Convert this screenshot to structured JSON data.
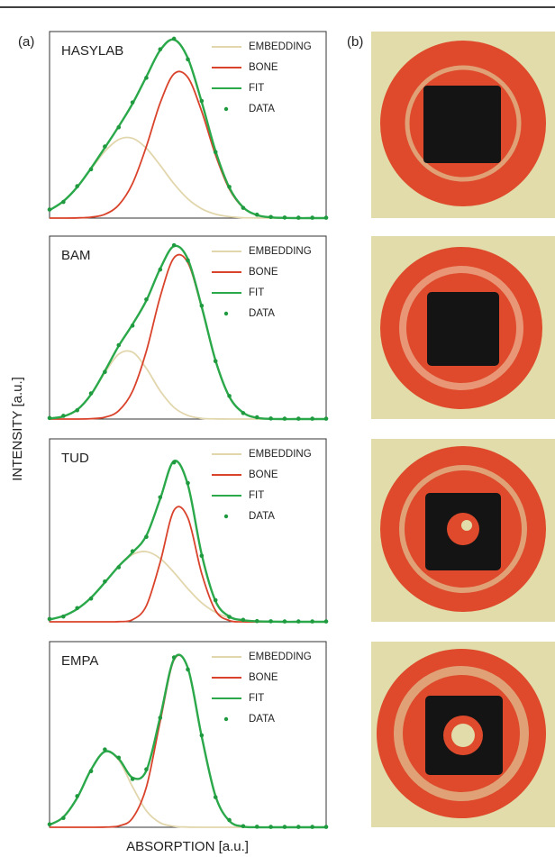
{
  "figure": {
    "panel_labels": [
      "(a)",
      "(b)"
    ],
    "y_label": "INTENSITY [a.u.]",
    "x_label": "ABSORPTION [a.u.]"
  },
  "chart_data": [
    {
      "type": "line",
      "title": "HASYLAB",
      "xlim": [
        0,
        100
      ],
      "ylim": [
        0,
        104
      ],
      "x": [
        0,
        5,
        10,
        15,
        20,
        25,
        30,
        35,
        40,
        45,
        50,
        55,
        60,
        65,
        70,
        75,
        80,
        85,
        90,
        95,
        100
      ],
      "series": [
        {
          "name": "EMBEDDING",
          "color": "#e2d6ad",
          "values": [
            4.4,
            9.4,
            17.2,
            27.3,
            37.2,
            43.8,
            44.5,
            38.9,
            29.4,
            19.1,
            10.7,
            5.2,
            2.2,
            0.8,
            0.2,
            0.1,
            0,
            0,
            0,
            0,
            0
          ]
        },
        {
          "name": "BONE",
          "color": "#d9432b",
          "values": [
            0,
            0,
            0.1,
            0.5,
            2.1,
            7.3,
            19.3,
            39.9,
            64.2,
            80.4,
            78.4,
            59.5,
            35.2,
            16.2,
            5.8,
            1.6,
            0.4,
            0.1,
            0,
            0,
            0
          ]
        },
        {
          "name": "FIT",
          "color": "#2aa84a",
          "values": [
            4.4,
            9.4,
            17.3,
            27.8,
            39.3,
            51.1,
            63.8,
            78.8,
            93.6,
            99.5,
            89.1,
            64.7,
            37.4,
            17.0,
            6.0,
            1.7,
            0.4,
            0.1,
            0,
            0,
            0
          ]
        },
        {
          "name": "DATA",
          "type": "scatter",
          "color": "#1f9a3f",
          "values": [
            4.8,
            9.0,
            17.8,
            27.2,
            39.9,
            50.6,
            64.5,
            78.2,
            94.1,
            100.0,
            88.5,
            65.3,
            36.8,
            17.4,
            5.7,
            1.9,
            0.6,
            0.3,
            0.2,
            0.2,
            0.2
          ]
        }
      ]
    },
    {
      "type": "line",
      "title": "BAM",
      "xlim": [
        0,
        100
      ],
      "ylim": [
        0,
        104
      ],
      "x": [
        0,
        5,
        10,
        15,
        20,
        25,
        30,
        35,
        40,
        45,
        50,
        55,
        60,
        65,
        70,
        75,
        80,
        85,
        90,
        95,
        100
      ],
      "series": [
        {
          "name": "EMBEDDING",
          "color": "#e2d6ad",
          "values": [
            0.3,
            1.5,
            5.3,
            13.8,
            26.3,
            36.9,
            38.0,
            28.8,
            16.0,
            6.6,
            2.0,
            0.4,
            0.1,
            0,
            0,
            0,
            0,
            0,
            0,
            0,
            0
          ]
        },
        {
          "name": "BONE",
          "color": "#d9432b",
          "values": [
            0,
            0,
            0,
            0.2,
            1.0,
            4.7,
            15.8,
            38.6,
            69.5,
            91.7,
            88.9,
            63.4,
            33.2,
            12.7,
            3.6,
            0.7,
            0.1,
            0,
            0,
            0,
            0
          ]
        },
        {
          "name": "FIT",
          "color": "#2aa84a",
          "values": [
            0.3,
            1.5,
            5.3,
            14.0,
            27.3,
            41.6,
            53.8,
            67.4,
            85.5,
            98.3,
            90.9,
            63.8,
            33.3,
            12.7,
            3.6,
            0.7,
            0.1,
            0,
            0,
            0,
            0
          ]
        },
        {
          "name": "DATA",
          "type": "scatter",
          "color": "#1f9a3f",
          "values": [
            0.6,
            1.8,
            5.0,
            14.6,
            26.8,
            42.0,
            53.1,
            68.0,
            85.0,
            98.8,
            90.2,
            64.4,
            32.9,
            13.1,
            3.4,
            1.0,
            0.3,
            0.2,
            0.2,
            0.2,
            0.2
          ]
        }
      ]
    },
    {
      "type": "line",
      "title": "TUD",
      "xlim": [
        0,
        100
      ],
      "ylim": [
        0,
        104
      ],
      "x": [
        0,
        5,
        10,
        15,
        20,
        25,
        30,
        35,
        40,
        45,
        50,
        55,
        60,
        65,
        70,
        75,
        80,
        85,
        90,
        95,
        100
      ],
      "series": [
        {
          "name": "EMBEDDING",
          "color": "#e2d6ad",
          "values": [
            1.3,
            3.3,
            7.3,
            13.7,
            22.4,
            31.5,
            38.2,
            39.9,
            36.0,
            28.0,
            18.8,
            10.8,
            5.4,
            2.3,
            0.9,
            0.3,
            0.1,
            0,
            0,
            0,
            0
          ]
        },
        {
          "name": "BONE",
          "color": "#d9432b",
          "values": [
            0,
            0,
            0,
            0,
            0,
            0.1,
            1.2,
            9.1,
            33.9,
            63.4,
            59.1,
            27.5,
            6.4,
            0.7,
            0,
            0,
            0,
            0,
            0,
            0,
            0
          ]
        },
        {
          "name": "FIT",
          "color": "#2aa84a",
          "values": [
            1.3,
            3.3,
            7.3,
            13.7,
            22.4,
            31.6,
            39.4,
            49.0,
            69.9,
            91.4,
            77.9,
            38.3,
            11.8,
            3.0,
            0.9,
            0.3,
            0.1,
            0,
            0,
            0,
            0
          ]
        },
        {
          "name": "DATA",
          "type": "scatter",
          "color": "#1f9a3f",
          "values": [
            1.6,
            3.0,
            7.8,
            13.2,
            22.9,
            31.0,
            40.1,
            48.3,
            70.8,
            90.6,
            78.9,
            37.5,
            12.3,
            2.8,
            1.1,
            0.4,
            0.3,
            0.2,
            0.2,
            0.2,
            0.2
          ]
        }
      ]
    },
    {
      "type": "line",
      "title": "EMPA",
      "xlim": [
        0,
        100
      ],
      "ylim": [
        0,
        100
      ],
      "x": [
        0,
        5,
        10,
        15,
        20,
        25,
        30,
        35,
        40,
        45,
        50,
        55,
        60,
        65,
        70,
        75,
        80,
        85,
        90,
        95,
        100
      ],
      "series": [
        {
          "name": "EMBEDDING",
          "color": "#e2d6ad",
          "values": [
            1.3,
            5.5,
            15.9,
            31.0,
            40.7,
            36.2,
            21.8,
            8.9,
            2.4,
            0.5,
            0.1,
            0,
            0,
            0,
            0,
            0,
            0,
            0,
            0,
            0,
            0
          ]
        },
        {
          "name": "BONE",
          "color": "#d9432b",
          "values": [
            0,
            0,
            0,
            0,
            0.1,
            0.7,
            4.9,
            21.6,
            57.0,
            90.2,
            85.7,
            48.9,
            16.8,
            3.4,
            0.4,
            0,
            0,
            0,
            0,
            0,
            0
          ]
        },
        {
          "name": "FIT",
          "color": "#2aa84a",
          "values": [
            1.3,
            5.5,
            15.9,
            31.0,
            40.8,
            36.9,
            26.7,
            30.5,
            59.4,
            90.7,
            85.8,
            48.9,
            16.8,
            3.4,
            0.4,
            0,
            0,
            0,
            0,
            0,
            0
          ]
        },
        {
          "name": "DATA",
          "type": "scatter",
          "color": "#1f9a3f",
          "values": [
            1.6,
            5.0,
            16.8,
            30.2,
            41.9,
            37.5,
            26.0,
            31.2,
            59.0,
            91.5,
            85.0,
            49.5,
            16.2,
            3.9,
            0.6,
            0.3,
            0.2,
            0.2,
            0.2,
            0.2,
            0.2
          ]
        }
      ]
    }
  ]
}
